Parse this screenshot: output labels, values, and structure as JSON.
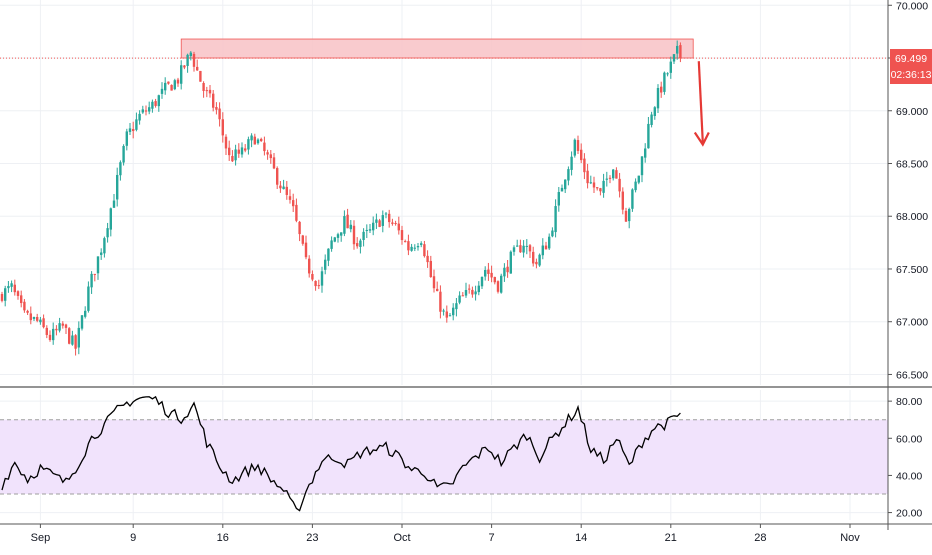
{
  "colors": {
    "up": "#26a69a",
    "down": "#ef5350",
    "grid": "#eef0f4",
    "axis_text": "#131722",
    "rsi_line": "#000000",
    "rsi_band": "#f1e3fc",
    "rsi_band_border": "#9e9e9e",
    "zone_fill": "#f8c2c6",
    "zone_border": "#ef5350",
    "price_line": "#ef5350",
    "arrow": "#e53935",
    "price_label_bg": "#ef5350",
    "price_label_text": "#ffffff"
  },
  "price_label": {
    "value": "69.499",
    "countdown": "02:36:13"
  },
  "chart_data": [
    {
      "type": "candlestick",
      "ylim": [
        66.4,
        70.05
      ],
      "y_ticks": [
        "70.000",
        "69.500",
        "69.000",
        "68.500",
        "68.000",
        "67.500",
        "67.000",
        "66.500"
      ],
      "y_tick_values": [
        70.0,
        69.5,
        69.0,
        68.5,
        68.0,
        67.5,
        67.0,
        66.5
      ],
      "x_ticks": [
        "Sep",
        "9",
        "16",
        "23",
        "Oct",
        "7",
        "14",
        "21",
        "28",
        "Nov"
      ],
      "x_tick_index": [
        12,
        41,
        69,
        97,
        125,
        153,
        181,
        209,
        237,
        265
      ],
      "bar_count": 213,
      "bars_per_day": 4,
      "current_price": 69.499,
      "resistance_zone": {
        "from_index": 56,
        "to_index": 216,
        "low": 69.5,
        "high": 69.68
      },
      "projection_arrow": {
        "from_index": 214,
        "from_price": 69.47,
        "to_price": 68.68
      },
      "anchors": [
        [
          0,
          67.25
        ],
        [
          4,
          67.32
        ],
        [
          8,
          67.05
        ],
        [
          12,
          67.0
        ],
        [
          16,
          66.85
        ],
        [
          20,
          66.95
        ],
        [
          24,
          66.75
        ],
        [
          28,
          67.3
        ],
        [
          32,
          67.7
        ],
        [
          36,
          68.2
        ],
        [
          40,
          68.75
        ],
        [
          44,
          68.95
        ],
        [
          48,
          69.05
        ],
        [
          52,
          69.2
        ],
        [
          56,
          69.3
        ],
        [
          60,
          69.55
        ],
        [
          64,
          69.2
        ],
        [
          68,
          69.0
        ],
        [
          72,
          68.55
        ],
        [
          76,
          68.6
        ],
        [
          80,
          68.75
        ],
        [
          84,
          68.55
        ],
        [
          88,
          68.3
        ],
        [
          92,
          68.05
        ],
        [
          96,
          67.55
        ],
        [
          100,
          67.35
        ],
        [
          104,
          67.75
        ],
        [
          108,
          67.95
        ],
        [
          112,
          67.75
        ],
        [
          116,
          67.85
        ],
        [
          120,
          68.0
        ],
        [
          124,
          67.9
        ],
        [
          128,
          67.7
        ],
        [
          132,
          67.8
        ],
        [
          136,
          67.3
        ],
        [
          140,
          67.0
        ],
        [
          144,
          67.2
        ],
        [
          148,
          67.3
        ],
        [
          152,
          67.5
        ],
        [
          156,
          67.35
        ],
        [
          160,
          67.6
        ],
        [
          164,
          67.75
        ],
        [
          168,
          67.55
        ],
        [
          172,
          67.8
        ],
        [
          176,
          68.3
        ],
        [
          180,
          68.7
        ],
        [
          184,
          68.35
        ],
        [
          188,
          68.2
        ],
        [
          192,
          68.5
        ],
        [
          196,
          68.0
        ],
        [
          200,
          68.4
        ],
        [
          204,
          69.0
        ],
        [
          208,
          69.3
        ],
        [
          212,
          69.55
        ],
        [
          213,
          69.47
        ]
      ]
    },
    {
      "type": "line",
      "ylim": [
        16.0,
        86.0
      ],
      "y_ticks": [
        "80.00",
        "60.00",
        "40.00",
        "20.00"
      ],
      "y_tick_values": [
        80,
        60,
        40,
        20
      ],
      "band": [
        30,
        70
      ],
      "series": [
        {
          "anchors": [
            [
              0,
              35
            ],
            [
              4,
              47
            ],
            [
              8,
              38
            ],
            [
              12,
              44
            ],
            [
              16,
              40
            ],
            [
              20,
              36
            ],
            [
              24,
              47
            ],
            [
              28,
              60
            ],
            [
              32,
              67
            ],
            [
              36,
              75
            ],
            [
              40,
              80
            ],
            [
              44,
              82
            ],
            [
              48,
              81
            ],
            [
              52,
              74
            ],
            [
              56,
              71
            ],
            [
              60,
              78
            ],
            [
              64,
              58
            ],
            [
              68,
              45
            ],
            [
              72,
              37
            ],
            [
              76,
              42
            ],
            [
              80,
              45
            ],
            [
              84,
              38
            ],
            [
              88,
              32
            ],
            [
              92,
              20
            ],
            [
              96,
              35
            ],
            [
              100,
              48
            ],
            [
              104,
              50
            ],
            [
              108,
              46
            ],
            [
              112,
              52
            ],
            [
              116,
              54
            ],
            [
              120,
              55
            ],
            [
              124,
              50
            ],
            [
              128,
              43
            ],
            [
              132,
              42
            ],
            [
              136,
              33
            ],
            [
              140,
              34
            ],
            [
              144,
              44
            ],
            [
              148,
              50
            ],
            [
              152,
              55
            ],
            [
              156,
              47
            ],
            [
              160,
              55
            ],
            [
              164,
              62
            ],
            [
              168,
              50
            ],
            [
              172,
              60
            ],
            [
              176,
              68
            ],
            [
              180,
              76
            ],
            [
              184,
              54
            ],
            [
              188,
              48
            ],
            [
              192,
              60
            ],
            [
              196,
              45
            ],
            [
              200,
              58
            ],
            [
              204,
              66
            ],
            [
              208,
              68
            ],
            [
              212,
              73
            ],
            [
              213,
              70
            ]
          ]
        }
      ]
    }
  ]
}
